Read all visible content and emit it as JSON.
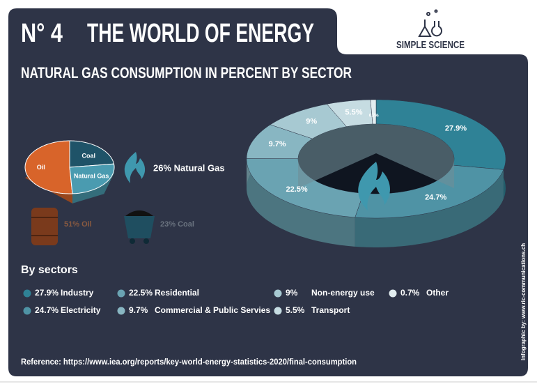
{
  "header": {
    "number": "N° 4",
    "title": "THE WORLD OF ENERGY",
    "brand": "SIMPLE SCIENCE"
  },
  "chart_data": [
    {
      "type": "donut",
      "title": "NATURAL GAS CONSUMPTION IN PERCENT BY SECTOR",
      "categories": [
        "Industry",
        "Electricity",
        "Residential",
        "Commercial & Public Servies",
        "Non-energy use",
        "Transport",
        "Other"
      ],
      "values": [
        27.9,
        24.7,
        22.5,
        9.7,
        9,
        5.5,
        0.7
      ],
      "value_labels": [
        "27.9%",
        "24.7%",
        "22.5%",
        "9.7%",
        "9%",
        "5.5%",
        "0.7%"
      ],
      "colors": [
        "#2f8296",
        "#4f93a5",
        "#6aa3b2",
        "#88b6c2",
        "#a7c9d2",
        "#c6dce2",
        "#e2edf0"
      ],
      "legend_title": "By sectors"
    },
    {
      "type": "pie",
      "categories": [
        "Oil",
        "Coal",
        "Natural Gas"
      ],
      "values": [
        51,
        23,
        26
      ],
      "value_labels": [
        "51% Oil",
        "23% Coal",
        "26% Natural Gas"
      ],
      "colors": [
        "#d8642a",
        "#1f5368",
        "#4a9bb0"
      ]
    }
  ],
  "reference": "Reference: https://www.iea.org/reports/key-world-energy-statistics-2020/final-consumption",
  "credit": "Infographic by: www.ric-communications.ch"
}
